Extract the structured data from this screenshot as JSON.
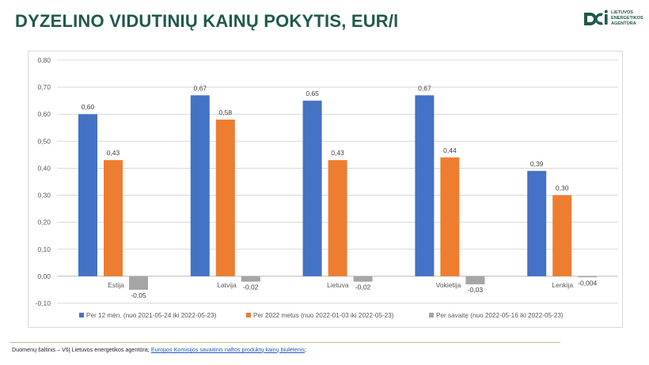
{
  "header": {
    "title": "DYZELINO VIDUTINIŲ KAINŲ POKYTIS, EUR/l"
  },
  "logo": {
    "lines": [
      "LIETUVOS",
      "ENERGETIKOS",
      "AGENTŪRA"
    ],
    "icon": "ena-logo-icon",
    "color": "#1f5a4c"
  },
  "footer": {
    "source_prefix": "Duomenų šaltinis – VšĮ Lietuvos energetikos agentūra;",
    "source_link": "Europos Komisijos savaitinis naftos produktų kainų biuletenis",
    "source_suffix": ";"
  },
  "chart_data": {
    "type": "bar",
    "categories": [
      "Estija",
      "Latvija",
      "Lietuva",
      "Vokietija",
      "Lenkija"
    ],
    "series": [
      {
        "name": "Per 12 mėn. (nuo 2021-05-24 iki 2022-05-23)",
        "color": "#4472c4",
        "values": [
          0.6,
          0.67,
          0.65,
          0.67,
          0.39
        ],
        "labels": [
          "0,60",
          "0,67",
          "0,65",
          "0,67",
          "0,39"
        ]
      },
      {
        "name": "Per 2022 metus (nuo 2022-01-03 iki 2022-05-23)",
        "color": "#ed7d31",
        "values": [
          0.43,
          0.58,
          0.43,
          0.44,
          0.3
        ],
        "labels": [
          "0,43",
          "0,58",
          "0,43",
          "0,44",
          "0,30"
        ]
      },
      {
        "name": "Per savaitę (nuo 2022-05-16 iki 2022-05-23)",
        "color": "#a5a5a5",
        "values": [
          -0.05,
          -0.02,
          -0.02,
          -0.03,
          -0.004
        ],
        "labels": [
          "-0,05",
          "-0,02",
          "-0,02",
          "-0,03",
          "-0,004"
        ]
      }
    ],
    "yticks": [
      "-0,10",
      "0,00",
      "0,10",
      "0,20",
      "0,30",
      "0,40",
      "0,50",
      "0,60",
      "0,70",
      "0,80"
    ],
    "ylim": [
      -0.1,
      0.8
    ],
    "grid": true,
    "legend": "bottom",
    "title": "",
    "xlabel": "",
    "ylabel": ""
  }
}
